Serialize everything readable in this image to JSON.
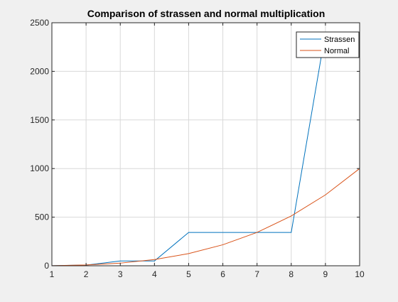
{
  "colors": {
    "figure_bg": "#f0f0f0",
    "axes_bg": "#ffffff",
    "grid": "#d9d9d9",
    "axis": "#262626",
    "strassen": "#0072bd",
    "normal": "#d95319"
  },
  "chart_data": {
    "type": "line",
    "title": "Comparison of strassen and normal multiplication",
    "xlabel": "",
    "ylabel": "",
    "xlim": [
      1,
      10
    ],
    "ylim": [
      0,
      2500
    ],
    "xticks": [
      1,
      2,
      3,
      4,
      5,
      6,
      7,
      8,
      9,
      10
    ],
    "yticks": [
      0,
      500,
      1000,
      1500,
      2000,
      2500
    ],
    "grid": true,
    "legend_position": "top-right",
    "series": [
      {
        "name": "Strassen",
        "color": "#0072bd",
        "x": [
          1,
          2,
          3,
          4,
          5,
          6,
          7,
          8,
          9,
          10
        ],
        "y": [
          1,
          7,
          49,
          49,
          343,
          343,
          343,
          343,
          2401,
          2401
        ]
      },
      {
        "name": "Normal",
        "color": "#d95319",
        "x": [
          1,
          2,
          3,
          4,
          5,
          6,
          7,
          8,
          9,
          10
        ],
        "y": [
          1,
          8,
          27,
          64,
          125,
          216,
          343,
          512,
          729,
          1000
        ]
      }
    ]
  }
}
